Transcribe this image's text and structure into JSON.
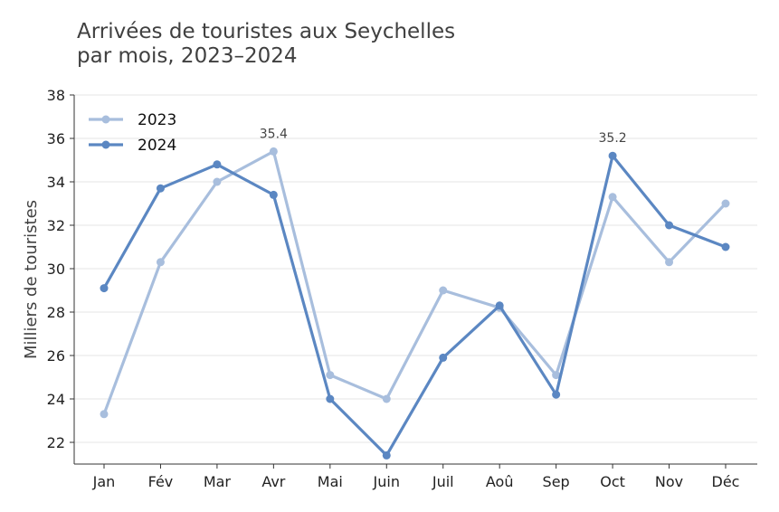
{
  "chart_data": {
    "type": "line",
    "title_lines": [
      "Arrivées de touristes aux Seychelles",
      "par mois, 2023–2024"
    ],
    "xlabel": "",
    "ylabel": "Milliers de touristes",
    "categories": [
      "Jan",
      "Fév",
      "Mar",
      "Avr",
      "Mai",
      "Juin",
      "Juil",
      "Aoû",
      "Sep",
      "Oct",
      "Nov",
      "Déc"
    ],
    "ylim": [
      21,
      38
    ],
    "yticks": [
      22,
      24,
      26,
      28,
      30,
      32,
      34,
      36,
      38
    ],
    "grid": "horizontal",
    "legend_position": "top-left",
    "series": [
      {
        "name": "2023",
        "color": "#a8bedd",
        "values": [
          23.3,
          30.3,
          34.0,
          35.4,
          25.1,
          24.0,
          29.0,
          28.2,
          25.1,
          33.3,
          30.3,
          33.0
        ]
      },
      {
        "name": "2024",
        "color": "#5b87c2",
        "values": [
          29.1,
          33.7,
          34.8,
          33.4,
          24.0,
          21.4,
          25.9,
          28.3,
          24.2,
          35.2,
          32.0,
          31.0
        ]
      }
    ],
    "annotations": [
      {
        "series": 0,
        "index": 3,
        "text": "35.4"
      },
      {
        "series": 1,
        "index": 9,
        "text": "35.2"
      }
    ]
  }
}
